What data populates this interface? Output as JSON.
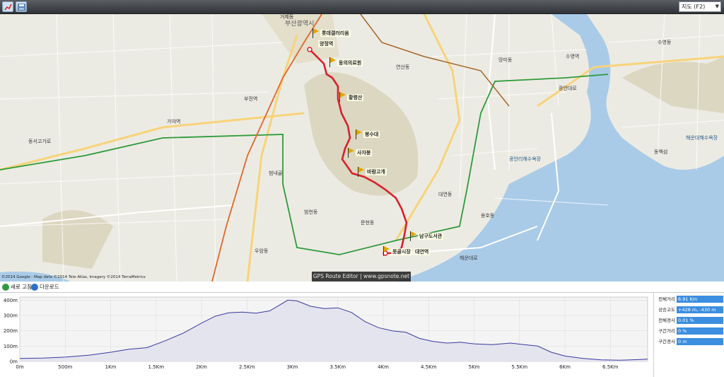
{
  "toolbar": {
    "buttons": [
      {
        "name": "open-route-button",
        "icon": "route-icon"
      },
      {
        "name": "save-route-button",
        "icon": "save-icon"
      }
    ],
    "map_type": {
      "selected": "지도 (F2)"
    }
  },
  "map": {
    "colors": {
      "route": "#d8202c",
      "subway_line1": "#e4662a",
      "subway_line2": "#2e9a3a",
      "subway_line3": "#a5672b",
      "sea": "#a9cbe8",
      "land": "#ecebe3",
      "park": "#d9d5c0"
    },
    "places": [
      {
        "name": "롯데갤러리움"
      },
      {
        "name": "양정역"
      },
      {
        "name": "동의의료원"
      },
      {
        "name": "황령산"
      },
      {
        "name": "봉수대"
      },
      {
        "name": "사자봉"
      },
      {
        "name": "바람고개"
      },
      {
        "name": "남구도서관"
      },
      {
        "name": "못골시장"
      },
      {
        "name": "대연역"
      }
    ],
    "labels": [
      "부산광역시",
      "거제동",
      "연산동",
      "수영역",
      "망미동",
      "수영동",
      "광안리해수욕장",
      "해운대해수욕장",
      "동백섬",
      "부전역",
      "범내골",
      "가야역",
      "동서고가로",
      "문현동",
      "대연동",
      "용호동",
      "광안대로",
      "해운대로",
      "우암동",
      "범천동"
    ],
    "copyright": "©2014 Google - Map data ©2014 Tele Atlas, Imagery ©2014 TerraMetrics",
    "watermark": "GPS Route Editor | www.gpsnote.net"
  },
  "midbar": {
    "refresh_label": "새로 고침",
    "download_label": "다운로드"
  },
  "chart_data": {
    "type": "area",
    "title": "",
    "xlabel": "",
    "ylabel": "",
    "x_ticks": [
      "0m",
      "500m",
      "1Km",
      "1.5Km",
      "2Km",
      "2.5Km",
      "3Km",
      "3.5Km",
      "4Km",
      "4.5Km",
      "5Km",
      "5.5Km",
      "6Km",
      "6.5Km"
    ],
    "y_ticks": [
      "0m",
      "100m",
      "200m",
      "300m",
      "400m"
    ],
    "xlim": [
      0,
      6.91
    ],
    "ylim": [
      0,
      420
    ],
    "grid": true,
    "color": "#3a3aa0",
    "fill": "#e4e4ee",
    "x": [
      0,
      0.25,
      0.5,
      0.75,
      1.0,
      1.2,
      1.4,
      1.6,
      1.8,
      2.0,
      2.15,
      2.3,
      2.45,
      2.6,
      2.75,
      2.85,
      2.95,
      3.05,
      3.2,
      3.35,
      3.5,
      3.65,
      3.8,
      3.95,
      4.1,
      4.25,
      4.4,
      4.55,
      4.7,
      4.85,
      5.0,
      5.2,
      5.4,
      5.55,
      5.7,
      5.85,
      6.0,
      6.2,
      6.4,
      6.6,
      6.8,
      6.91
    ],
    "y": [
      20,
      22,
      28,
      40,
      60,
      80,
      90,
      135,
      185,
      250,
      295,
      318,
      322,
      315,
      330,
      365,
      400,
      395,
      360,
      345,
      350,
      320,
      260,
      220,
      200,
      190,
      150,
      130,
      120,
      125,
      115,
      110,
      120,
      110,
      100,
      60,
      35,
      20,
      10,
      8,
      12,
      15
    ]
  },
  "stats": [
    {
      "label": "전체거리",
      "value": "6.91 Km"
    },
    {
      "label": "상승고도",
      "value": "+428 m, -430 m"
    },
    {
      "label": "전체경사",
      "value": "0.01 %"
    },
    {
      "label": "구간거리",
      "value": "0 %"
    },
    {
      "label": "구간경사",
      "value": "0 m"
    }
  ]
}
